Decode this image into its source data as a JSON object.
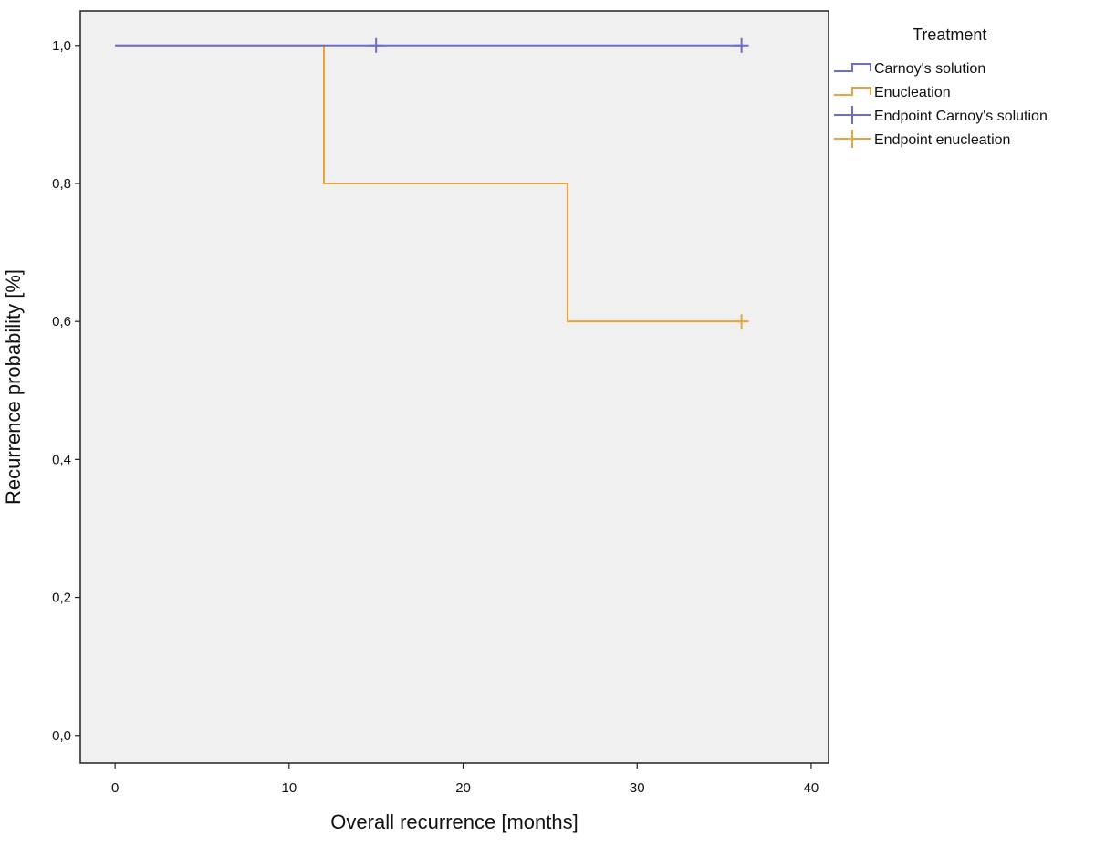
{
  "chart_data": {
    "type": "line",
    "xlabel": "Overall recurrence [months]",
    "ylabel": "Recurrence probability [%]",
    "xlim": [
      -2,
      41
    ],
    "ylim": [
      -0.04,
      1.05
    ],
    "x_ticks": [
      0,
      10,
      20,
      30,
      40
    ],
    "x_tick_labels": [
      "0",
      "10",
      "20",
      "30",
      "40"
    ],
    "y_ticks": [
      0.0,
      0.2,
      0.4,
      0.6,
      0.8,
      1.0
    ],
    "y_tick_labels": [
      "0,0",
      "0,2",
      "0,4",
      "0,6",
      "0,8",
      "1,0"
    ],
    "grid": false,
    "plot_background": "#f0f0f0",
    "legend": {
      "title": "Treatment",
      "placement": "right",
      "entries": [
        {
          "label": "Carnoy's solution",
          "kind": "step",
          "color": "#6b6bd6"
        },
        {
          "label": "Enucleation",
          "kind": "step",
          "color": "#e8a33a"
        },
        {
          "label": "Endpoint Carnoy's solution",
          "kind": "censor",
          "color": "#6b6bd6"
        },
        {
          "label": "Endpoint enucleation",
          "kind": "censor",
          "color": "#e8a33a"
        }
      ]
    },
    "series": [
      {
        "name": "Carnoy's solution",
        "color": "#6b6bd6",
        "step_x": [
          0,
          36
        ],
        "step_y": [
          1.0,
          1.0
        ],
        "censored": [
          {
            "x": 15,
            "y": 1.0
          },
          {
            "x": 36,
            "y": 1.0
          }
        ]
      },
      {
        "name": "Enucleation",
        "color": "#e8a33a",
        "step_x": [
          0,
          12,
          26,
          36
        ],
        "step_y": [
          1.0,
          0.8,
          0.6,
          0.6
        ],
        "censored": [
          {
            "x": 36,
            "y": 0.6
          }
        ]
      }
    ]
  }
}
